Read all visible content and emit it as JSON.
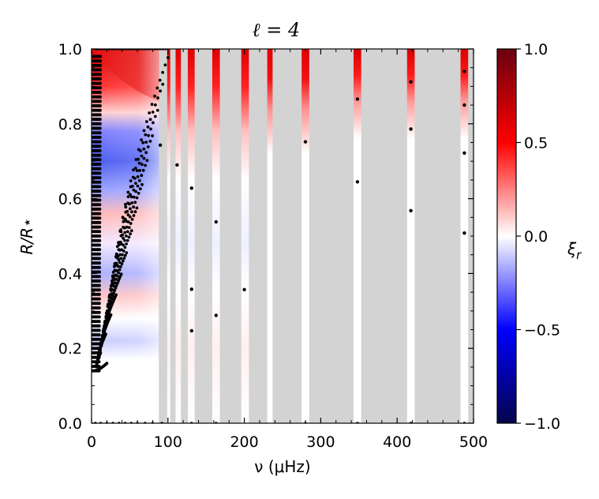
{
  "chart_data": {
    "type": "heatmap",
    "title": "ℓ = 4",
    "xlabel": "ν (μHz)",
    "ylabel": "R/R⋆",
    "xlim": [
      0,
      500
    ],
    "ylim": [
      0.0,
      1.0
    ],
    "x_ticks": [
      "0",
      "100",
      "200",
      "300",
      "400",
      "500"
    ],
    "y_ticks": [
      "0.0",
      "0.2",
      "0.4",
      "0.6",
      "0.8",
      "1.0"
    ],
    "colorbar": {
      "label": "ξ",
      "label_subscript": "r",
      "range": [
        -1.0,
        1.0
      ],
      "ticks": [
        "1.0",
        "0.5",
        "0.0",
        "−0.5",
        "−1.0"
      ],
      "colors": [
        "#05054a",
        "#0000ff",
        "#ffffff",
        "#ff0000",
        "#6a0010"
      ]
    },
    "background_color": "#d3d3d3",
    "dense_region_nu_max": 100,
    "dense_dots_origin": {
      "nu": 5,
      "r": 0.14
    },
    "gap_bands": [
      {
        "nu": [
          0,
          88
        ]
      },
      {
        "nu": [
          99,
          103
        ]
      },
      {
        "nu": [
          110,
          117
        ]
      },
      {
        "nu": [
          126,
          135
        ]
      },
      {
        "nu": [
          158,
          168
        ]
      },
      {
        "nu": [
          196,
          206
        ]
      },
      {
        "nu": [
          230,
          237
        ]
      },
      {
        "nu": [
          275,
          285
        ]
      },
      {
        "nu": [
          343,
          353
        ]
      },
      {
        "nu": [
          413,
          423
        ]
      },
      {
        "nu": [
          483,
          493
        ]
      }
    ],
    "isolated_points": [
      {
        "nu": 90,
        "r": 0.743
      },
      {
        "nu": 112,
        "r": 0.69
      },
      {
        "nu": 131,
        "r": 0.628
      },
      {
        "nu": 131,
        "r": 0.358
      },
      {
        "nu": 131,
        "r": 0.247
      },
      {
        "nu": 163,
        "r": 0.538
      },
      {
        "nu": 163,
        "r": 0.288
      },
      {
        "nu": 200,
        "r": 0.357
      },
      {
        "nu": 280,
        "r": 0.752
      },
      {
        "nu": 348,
        "r": 0.866
      },
      {
        "nu": 348,
        "r": 0.645
      },
      {
        "nu": 418,
        "r": 0.912
      },
      {
        "nu": 418,
        "r": 0.786
      },
      {
        "nu": 418,
        "r": 0.568
      },
      {
        "nu": 488,
        "r": 0.94
      },
      {
        "nu": 488,
        "r": 0.85
      },
      {
        "nu": 488,
        "r": 0.722
      },
      {
        "nu": 488,
        "r": 0.508
      }
    ],
    "surface_dots_r": 1.0,
    "center_dots_r": 0.0,
    "grid": false
  }
}
